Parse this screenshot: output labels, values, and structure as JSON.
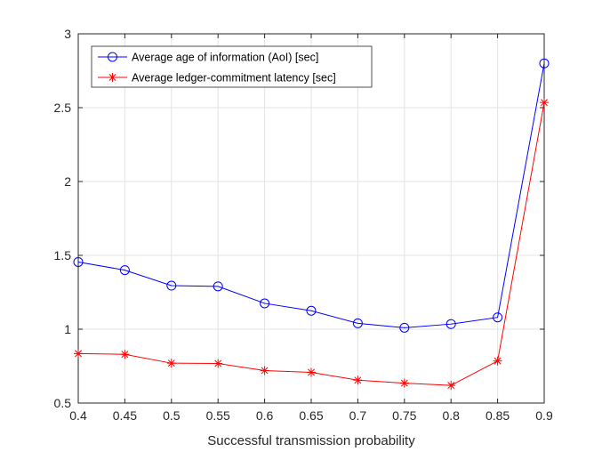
{
  "chart_data": {
    "type": "line",
    "title": "",
    "xlabel": "Successful transmission probability",
    "ylabel": "",
    "x": [
      0.4,
      0.45,
      0.5,
      0.55,
      0.6,
      0.65,
      0.7,
      0.75,
      0.8,
      0.85,
      0.9
    ],
    "xlim": [
      0.4,
      0.9
    ],
    "ylim": [
      0.5,
      3
    ],
    "xticks": [
      0.4,
      0.45,
      0.5,
      0.55,
      0.6,
      0.65,
      0.7,
      0.75,
      0.8,
      0.85,
      0.9
    ],
    "xtick_labels": [
      "0.4",
      "0.45",
      "0.5",
      "0.55",
      "0.6",
      "0.65",
      "0.7",
      "0.75",
      "0.8",
      "0.85",
      "0.9"
    ],
    "yticks": [
      0.5,
      1,
      1.5,
      2,
      2.5,
      3
    ],
    "ytick_labels": [
      "0.5",
      "1",
      "1.5",
      "2",
      "2.5",
      "3"
    ],
    "grid": true,
    "legend_position": "top-left",
    "series": [
      {
        "name": "Average age of information (AoI) [sec]",
        "color": "#0000ff",
        "marker": "circle",
        "values": [
          1.455,
          1.4,
          1.295,
          1.29,
          1.175,
          1.125,
          1.04,
          1.01,
          1.035,
          1.08,
          2.8
        ]
      },
      {
        "name": "Average ledger-commitment latency [sec]",
        "color": "#ff0000",
        "marker": "asterisk",
        "values": [
          0.835,
          0.83,
          0.77,
          0.768,
          0.72,
          0.708,
          0.655,
          0.635,
          0.62,
          0.785,
          2.535
        ]
      }
    ]
  }
}
